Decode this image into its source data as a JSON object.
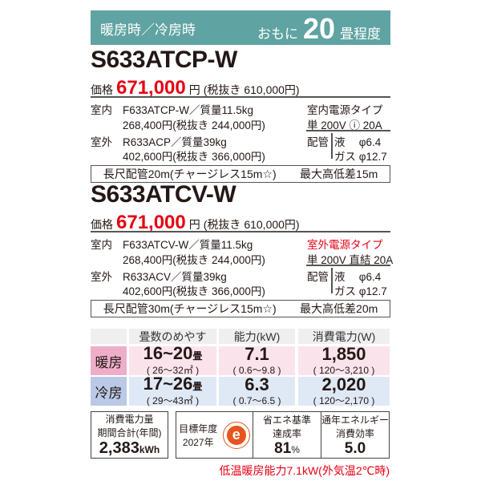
{
  "header": {
    "season": "暖房時／冷房時",
    "mainly": "おもに",
    "tatami": "20",
    "unit": "畳程度"
  },
  "models": [
    {
      "name": "S633ATCP-W",
      "price_label": "価格",
      "price": "671,000",
      "yen": "円",
      "price_ex": "(税抜き 610,000円)",
      "indoor_label": "室内",
      "indoor_model": "F633ATCP-W／質量11.5kg",
      "indoor_price": "268,400円(税抜き 244,000円)",
      "outdoor_label": "室外",
      "outdoor_model": "R633ACP／質量39kg",
      "outdoor_price": "402,600円(税抜き 366,000円)",
      "power_type": "室内電源タイプ",
      "power_spec": "単 200V ⓘ 20A",
      "power_red": false,
      "pipe_label": "配管",
      "pipe_liquid": "液　 φ6.4",
      "pipe_gas": "ガス φ12.7",
      "long_pipe": "長尺配管20m(チャージレス15m☆)",
      "max_height": "最大高低差15m"
    },
    {
      "name": "S633ATCV-W",
      "price_label": "価格",
      "price": "671,000",
      "yen": "円",
      "price_ex": "(税抜き 610,000円)",
      "indoor_label": "室内",
      "indoor_model": "F633ATCV-W／質量11.5kg",
      "indoor_price": "268,400円(税抜き 244,000円)",
      "outdoor_label": "室外",
      "outdoor_model": "R633ACV／質量39kg",
      "outdoor_price": "402,600円(税抜き 366,000円)",
      "power_type": "室外電源タイプ",
      "power_spec": "単 200V 直結 20A",
      "power_red": true,
      "pipe_label": "配管",
      "pipe_liquid": "液　 φ6.4",
      "pipe_gas": "ガス φ12.7",
      "long_pipe": "長尺配管30m(チャージレス15m☆)",
      "max_height": "最大高低差20m"
    }
  ],
  "table": {
    "headers": [
      "畳数のめやす",
      "能力(kW)",
      "消費電力(W)"
    ],
    "rows": [
      {
        "label": "暖房",
        "tatami": "16~20",
        "tatami_unit": "畳",
        "area": "( 26～32㎡ )",
        "capacity": "7.1",
        "capacity_range": "( 0.6～9.8 )",
        "power": "1,850",
        "power_range": "( 120～3,210 )"
      },
      {
        "label": "冷房",
        "tatami": "17~26",
        "tatami_unit": "畳",
        "area": "( 29～43㎡ )",
        "capacity": "6.3",
        "capacity_range": "( 0.7～6.5 )",
        "power": "2,020",
        "power_range": "( 120～2,170 )"
      }
    ]
  },
  "energy": {
    "annual_label1": "消費電力量",
    "annual_label2": "期間合計(年間)",
    "annual_value": "2,383",
    "annual_unit": "kWh",
    "target_label": "目標年度",
    "target_year": "2027年",
    "logo_letter": "e",
    "achieve_label1": "省エネ基準",
    "achieve_label2": "達成率",
    "achieve_value": "81",
    "achieve_unit": "%",
    "apf_label1": "通年エネルギー",
    "apf_label2": "消費効率",
    "apf_value": "5.0"
  },
  "footnote": "低温暖房能力7.1kW(外気温2℃時)",
  "colors": {
    "band": "#5fa3a2",
    "price": "#e60012",
    "heat": "#fbe3ec",
    "cool": "#dfe9f5",
    "logo": "#e8541e"
  }
}
